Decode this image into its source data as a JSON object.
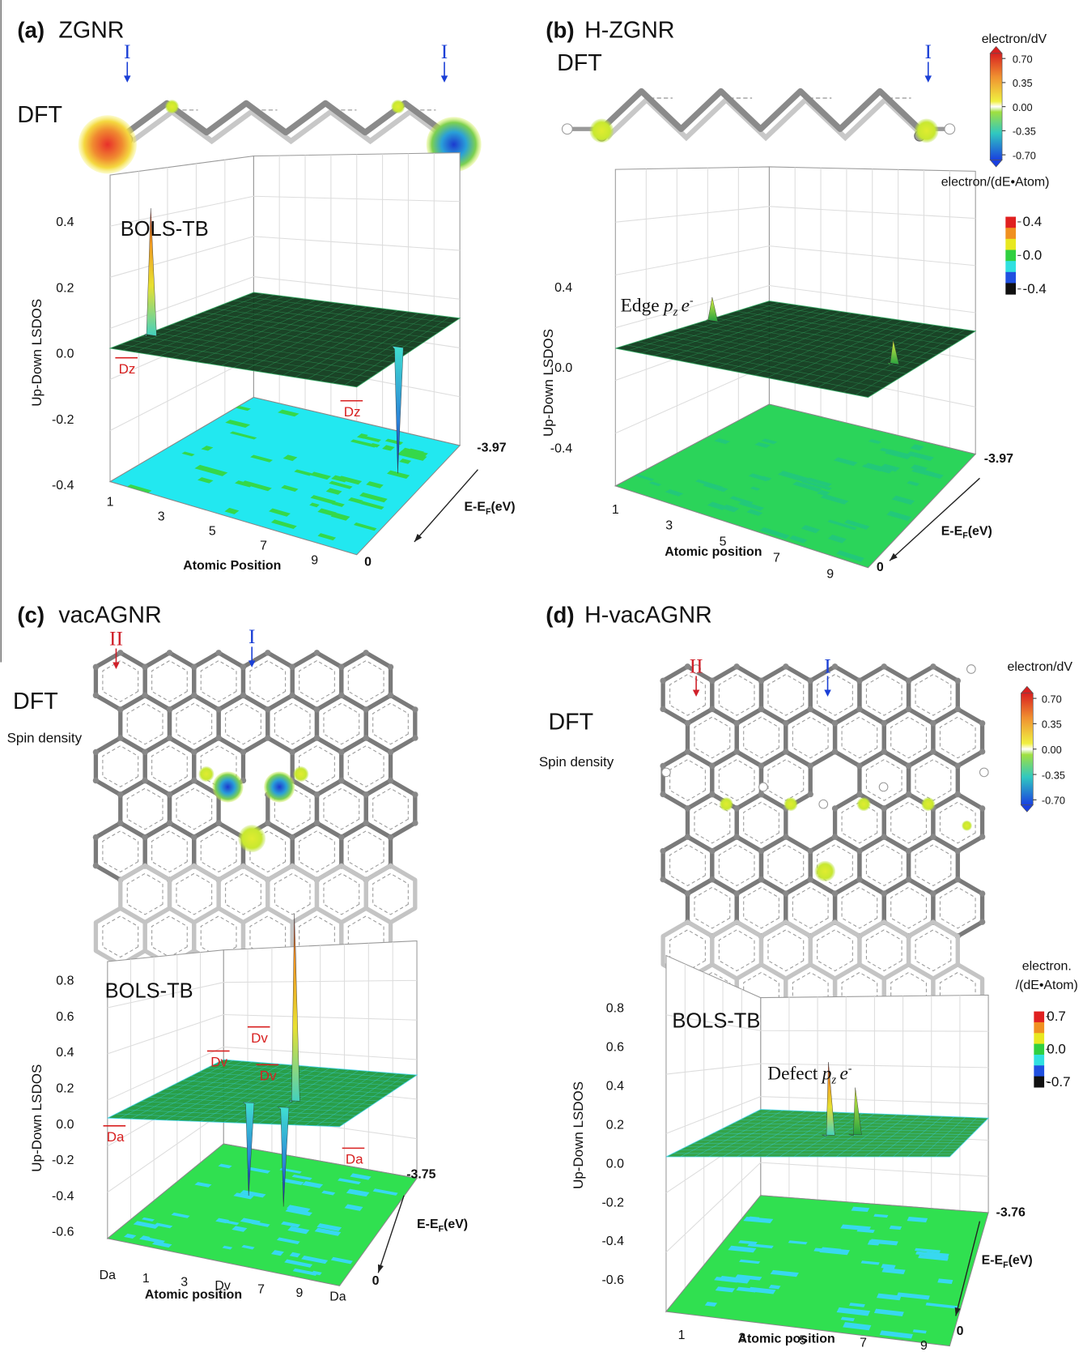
{
  "panels": [
    {
      "label": "(a)",
      "title": "ZGNR",
      "method": "DFT",
      "sites": [
        "I",
        "I"
      ],
      "model": "BOLS-TB",
      "y_label": "Up-Down LSDOS",
      "y_ticks": [
        "0.4",
        "0.2",
        "0.0",
        "-0.2",
        "-0.4"
      ],
      "x_label": "Atomic Position",
      "x_ticks": [
        "1",
        "3",
        "5",
        "7",
        "9"
      ],
      "energy_label": {
        "main": "E-E",
        "subscript": "F",
        "unit": "(eV)"
      },
      "energy_ticks": [
        "-3.97",
        "0"
      ],
      "annotations": [
        "Dz",
        "Dz"
      ]
    },
    {
      "label": "(b)",
      "title": "H-ZGNR",
      "method": "DFT",
      "sites": [
        "I"
      ],
      "feature": {
        "text": "Edge",
        "symbol": "p",
        "subscript": "z",
        "particle": "e",
        "superscript": "-"
      },
      "y_label": "Up-Down LSDOS",
      "y_ticks": [
        "0.4",
        "0.0",
        "-0.4"
      ],
      "x_label": "Atomic position",
      "x_ticks": [
        "1",
        "3",
        "5",
        "7",
        "9"
      ],
      "energy_label": {
        "main": "E-E",
        "subscript": "F",
        "unit": "(eV)"
      },
      "energy_ticks": [
        "-3.97",
        "0"
      ],
      "colorbars": [
        {
          "title": [
            "electron/dV"
          ],
          "ticks": [
            "0.70",
            "0.35",
            "0.00",
            "-0.35",
            "-0.70"
          ]
        },
        {
          "title": [
            "electron/(dE•Atom)"
          ],
          "ticks": [
            "0.4",
            "0.0",
            "-0.4"
          ]
        }
      ]
    },
    {
      "label": "(c)",
      "title": "vacAGNR",
      "method": "DFT",
      "spin_label": "Spin density",
      "sites": [
        "II",
        "I"
      ],
      "model": "BOLS-TB",
      "y_label": "Up-Down LSDOS",
      "y_ticks": [
        "0.8",
        "0.6",
        "0.4",
        "0.2",
        "0.0",
        "-0.2",
        "-0.4",
        "-0.6"
      ],
      "x_label": "Atomic position",
      "x_ticks": [
        "Da",
        "1",
        "3",
        "Dv",
        "7",
        "9",
        "Da"
      ],
      "energy_label": {
        "main": "E-E",
        "subscript": "F",
        "unit": "(eV)"
      },
      "energy_ticks": [
        "-3.75",
        "0"
      ],
      "annotations": [
        "Da",
        "Dv",
        "Dv",
        "Dv",
        "Da"
      ]
    },
    {
      "label": "(d)",
      "title": "H-vacAGNR",
      "method": "DFT",
      "spin_label": "Spin density",
      "sites": [
        "II",
        "I"
      ],
      "model": "BOLS-TB",
      "feature": {
        "text": "Defect",
        "symbol": "p",
        "subscript": "z",
        "particle": "e",
        "superscript": "-"
      },
      "y_label": "Up-Down LSDOS",
      "y_ticks": [
        "0.8",
        "0.6",
        "0.4",
        "0.2",
        "0.0",
        "-0.2",
        "-0.4",
        "-0.6"
      ],
      "x_label": "Atomic position",
      "x_ticks": [
        "1",
        "3",
        "5",
        "7",
        "9"
      ],
      "energy_label": {
        "main": "E-E",
        "subscript": "F",
        "unit": "(eV)"
      },
      "energy_ticks": [
        "-3.76",
        "0"
      ],
      "colorbars": [
        {
          "title": [
            "electron/dV"
          ],
          "ticks": [
            "0.70",
            "0.35",
            "0.00",
            "-0.35",
            "-0.70"
          ]
        },
        {
          "title": [
            "electron.",
            "/(dE•Atom)"
          ],
          "ticks": [
            "0.7",
            "0.0",
            "-0.7"
          ]
        }
      ]
    }
  ]
}
